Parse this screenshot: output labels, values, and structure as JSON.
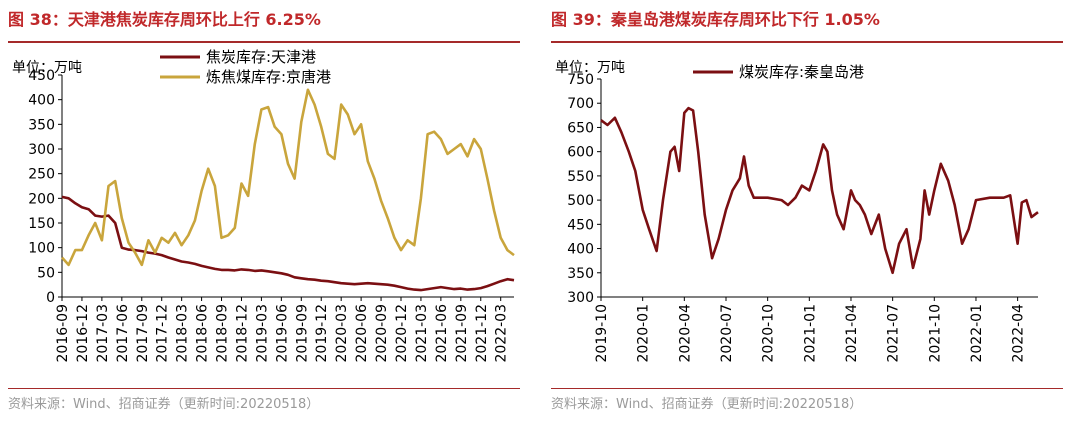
{
  "charts": [
    {
      "title": "图 38：天津港焦炭库存周环比上行 6.25%",
      "source": "资料来源：Wind、招商证券（更新时间:20220518）",
      "unit": "单位：万吨"
    },
    {
      "title": "图 39：秦皇岛港煤炭库存周环比下行 1.05%",
      "source": "资料来源：Wind、招商证券（更新时间:20220518）",
      "unit": "单位：万吨"
    }
  ],
  "chart_data": [
    {
      "type": "line",
      "ylabel": "单位：万吨",
      "ylim": [
        0,
        450
      ],
      "yticks": [
        0,
        50,
        100,
        150,
        200,
        250,
        300,
        350,
        400,
        450
      ],
      "x_tick_labels": [
        "2016-09",
        "2016-12",
        "2017-03",
        "2017-06",
        "2017-09",
        "2017-12",
        "2018-03",
        "2018-06",
        "2018-09",
        "2018-12",
        "2019-03",
        "2019-06",
        "2019-09",
        "2019-12",
        "2020-03",
        "2020-06",
        "2020-09",
        "2020-12",
        "2021-03",
        "2021-06",
        "2021-09",
        "2021-12",
        "2022-03"
      ],
      "legend_position": "top",
      "series": [
        {
          "name": "焦炭库存:天津港",
          "color": "#7b0f12",
          "points": [
            [
              "2016-09",
              203
            ],
            [
              "2016-10",
              200
            ],
            [
              "2016-11",
              190
            ],
            [
              "2016-12",
              182
            ],
            [
              "2017-01",
              178
            ],
            [
              "2017-02",
              165
            ],
            [
              "2017-03",
              163
            ],
            [
              "2017-04",
              165
            ],
            [
              "2017-05",
              150
            ],
            [
              "2017-06",
              100
            ],
            [
              "2017-07",
              96
            ],
            [
              "2017-08",
              95
            ],
            [
              "2017-09",
              93
            ],
            [
              "2017-10",
              90
            ],
            [
              "2017-11",
              88
            ],
            [
              "2017-12",
              85
            ],
            [
              "2018-01",
              80
            ],
            [
              "2018-02",
              76
            ],
            [
              "2018-03",
              72
            ],
            [
              "2018-04",
              70
            ],
            [
              "2018-05",
              67
            ],
            [
              "2018-06",
              63
            ],
            [
              "2018-07",
              60
            ],
            [
              "2018-08",
              57
            ],
            [
              "2018-09",
              55
            ],
            [
              "2018-10",
              55
            ],
            [
              "2018-11",
              54
            ],
            [
              "2018-12",
              56
            ],
            [
              "2019-01",
              55
            ],
            [
              "2019-02",
              53
            ],
            [
              "2019-03",
              54
            ],
            [
              "2019-04",
              52
            ],
            [
              "2019-05",
              50
            ],
            [
              "2019-06",
              48
            ],
            [
              "2019-07",
              45
            ],
            [
              "2019-08",
              40
            ],
            [
              "2019-09",
              38
            ],
            [
              "2019-10",
              36
            ],
            [
              "2019-11",
              35
            ],
            [
              "2019-12",
              33
            ],
            [
              "2020-01",
              32
            ],
            [
              "2020-02",
              30
            ],
            [
              "2020-03",
              28
            ],
            [
              "2020-04",
              27
            ],
            [
              "2020-05",
              26
            ],
            [
              "2020-06",
              27
            ],
            [
              "2020-07",
              28
            ],
            [
              "2020-08",
              27
            ],
            [
              "2020-09",
              26
            ],
            [
              "2020-10",
              25
            ],
            [
              "2020-11",
              23
            ],
            [
              "2020-12",
              20
            ],
            [
              "2021-01",
              17
            ],
            [
              "2021-02",
              15
            ],
            [
              "2021-03",
              14
            ],
            [
              "2021-04",
              16
            ],
            [
              "2021-05",
              18
            ],
            [
              "2021-06",
              20
            ],
            [
              "2021-07",
              18
            ],
            [
              "2021-08",
              16
            ],
            [
              "2021-09",
              17
            ],
            [
              "2021-10",
              15
            ],
            [
              "2021-11",
              16
            ],
            [
              "2021-12",
              18
            ],
            [
              "2022-01",
              22
            ],
            [
              "2022-02",
              27
            ],
            [
              "2022-03",
              32
            ],
            [
              "2022-04",
              36
            ],
            [
              "2022-05",
              34
            ]
          ]
        },
        {
          "name": "炼焦煤库存:京唐港",
          "color": "#c9a53c",
          "points": [
            [
              "2016-09",
              80
            ],
            [
              "2016-10",
              65
            ],
            [
              "2016-11",
              95
            ],
            [
              "2016-12",
              95
            ],
            [
              "2017-01",
              125
            ],
            [
              "2017-02",
              150
            ],
            [
              "2017-03",
              115
            ],
            [
              "2017-04",
              225
            ],
            [
              "2017-05",
              235
            ],
            [
              "2017-06",
              160
            ],
            [
              "2017-07",
              110
            ],
            [
              "2017-08",
              90
            ],
            [
              "2017-09",
              65
            ],
            [
              "2017-10",
              115
            ],
            [
              "2017-11",
              90
            ],
            [
              "2017-12",
              120
            ],
            [
              "2018-01",
              110
            ],
            [
              "2018-02",
              130
            ],
            [
              "2018-03",
              105
            ],
            [
              "2018-04",
              125
            ],
            [
              "2018-05",
              155
            ],
            [
              "2018-06",
              215
            ],
            [
              "2018-07",
              260
            ],
            [
              "2018-08",
              225
            ],
            [
              "2018-09",
              120
            ],
            [
              "2018-10",
              125
            ],
            [
              "2018-11",
              140
            ],
            [
              "2018-12",
              230
            ],
            [
              "2019-01",
              205
            ],
            [
              "2019-02",
              310
            ],
            [
              "2019-03",
              380
            ],
            [
              "2019-04",
              385
            ],
            [
              "2019-05",
              345
            ],
            [
              "2019-06",
              330
            ],
            [
              "2019-07",
              270
            ],
            [
              "2019-08",
              240
            ],
            [
              "2019-09",
              355
            ],
            [
              "2019-10",
              420
            ],
            [
              "2019-11",
              390
            ],
            [
              "2019-12",
              345
            ],
            [
              "2020-01",
              290
            ],
            [
              "2020-02",
              280
            ],
            [
              "2020-03",
              390
            ],
            [
              "2020-04",
              370
            ],
            [
              "2020-05",
              330
            ],
            [
              "2020-06",
              350
            ],
            [
              "2020-07",
              275
            ],
            [
              "2020-08",
              240
            ],
            [
              "2020-09",
              195
            ],
            [
              "2020-10",
              160
            ],
            [
              "2020-11",
              120
            ],
            [
              "2020-12",
              95
            ],
            [
              "2021-01",
              115
            ],
            [
              "2021-02",
              105
            ],
            [
              "2021-03",
              200
            ],
            [
              "2021-04",
              330
            ],
            [
              "2021-05",
              335
            ],
            [
              "2021-06",
              320
            ],
            [
              "2021-07",
              290
            ],
            [
              "2021-08",
              300
            ],
            [
              "2021-09",
              310
            ],
            [
              "2021-10",
              285
            ],
            [
              "2021-11",
              320
            ],
            [
              "2021-12",
              300
            ],
            [
              "2022-01",
              240
            ],
            [
              "2022-02",
              175
            ],
            [
              "2022-03",
              120
            ],
            [
              "2022-04",
              95
            ],
            [
              "2022-05",
              85
            ]
          ]
        }
      ]
    },
    {
      "type": "line",
      "ylabel": "单位：万吨",
      "ylim": [
        300,
        750
      ],
      "yticks": [
        300,
        350,
        400,
        450,
        500,
        550,
        600,
        650,
        700,
        750
      ],
      "x_tick_labels": [
        "2019-10",
        "2020-01",
        "2020-04",
        "2020-07",
        "2020-10",
        "2021-01",
        "2021-04",
        "2021-07",
        "2021-10",
        "2022-01",
        "2022-04"
      ],
      "legend_position": "top",
      "series": [
        {
          "name": "煤炭库存:秦皇岛港",
          "color": "#7b0f12",
          "points": [
            [
              "2019-10-01",
              665
            ],
            [
              "2019-10-15",
              655
            ],
            [
              "2019-11-01",
              670
            ],
            [
              "2019-11-15",
              640
            ],
            [
              "2019-12-01",
              600
            ],
            [
              "2019-12-15",
              560
            ],
            [
              "2020-01-01",
              480
            ],
            [
              "2020-01-15",
              440
            ],
            [
              "2020-02-01",
              395
            ],
            [
              "2020-02-15",
              500
            ],
            [
              "2020-03-01",
              600
            ],
            [
              "2020-03-10",
              610
            ],
            [
              "2020-03-20",
              560
            ],
            [
              "2020-04-01",
              680
            ],
            [
              "2020-04-10",
              690
            ],
            [
              "2020-04-20",
              685
            ],
            [
              "2020-05-01",
              600
            ],
            [
              "2020-05-15",
              470
            ],
            [
              "2020-06-01",
              380
            ],
            [
              "2020-06-15",
              420
            ],
            [
              "2020-07-01",
              480
            ],
            [
              "2020-07-15",
              520
            ],
            [
              "2020-08-01",
              545
            ],
            [
              "2020-08-10",
              590
            ],
            [
              "2020-08-20",
              530
            ],
            [
              "2020-09-01",
              505
            ],
            [
              "2020-10-01",
              505
            ],
            [
              "2020-11-01",
              500
            ],
            [
              "2020-11-15",
              490
            ],
            [
              "2020-12-01",
              505
            ],
            [
              "2020-12-15",
              530
            ],
            [
              "2021-01-01",
              520
            ],
            [
              "2021-01-15",
              560
            ],
            [
              "2021-02-01",
              615
            ],
            [
              "2021-02-10",
              600
            ],
            [
              "2021-02-20",
              520
            ],
            [
              "2021-03-01",
              470
            ],
            [
              "2021-03-15",
              440
            ],
            [
              "2021-04-01",
              520
            ],
            [
              "2021-04-10",
              500
            ],
            [
              "2021-04-20",
              490
            ],
            [
              "2021-05-01",
              470
            ],
            [
              "2021-05-15",
              430
            ],
            [
              "2021-06-01",
              470
            ],
            [
              "2021-06-15",
              400
            ],
            [
              "2021-07-01",
              350
            ],
            [
              "2021-07-15",
              410
            ],
            [
              "2021-08-01",
              440
            ],
            [
              "2021-08-15",
              360
            ],
            [
              "2021-09-01",
              420
            ],
            [
              "2021-09-10",
              520
            ],
            [
              "2021-09-20",
              470
            ],
            [
              "2021-10-01",
              520
            ],
            [
              "2021-10-15",
              575
            ],
            [
              "2021-11-01",
              540
            ],
            [
              "2021-11-15",
              490
            ],
            [
              "2021-12-01",
              410
            ],
            [
              "2021-12-15",
              440
            ],
            [
              "2022-01-01",
              500
            ],
            [
              "2022-02-01",
              505
            ],
            [
              "2022-03-01",
              505
            ],
            [
              "2022-03-15",
              510
            ],
            [
              "2022-04-01",
              410
            ],
            [
              "2022-04-10",
              495
            ],
            [
              "2022-04-20",
              500
            ],
            [
              "2022-05-01",
              465
            ],
            [
              "2022-05-15",
              475
            ]
          ]
        }
      ]
    }
  ]
}
